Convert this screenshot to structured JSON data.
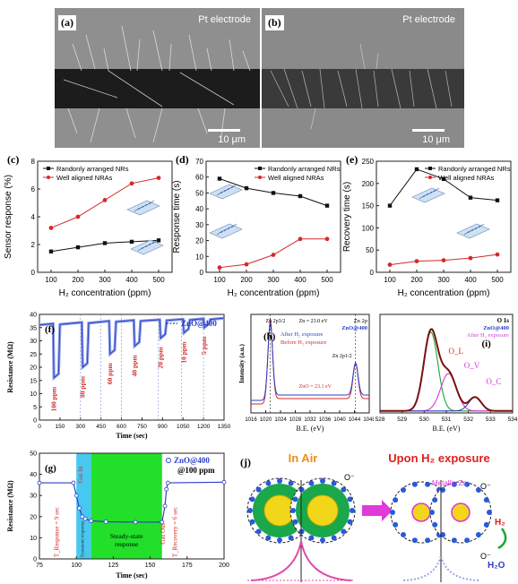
{
  "sem": {
    "a": {
      "tag": "(a)",
      "label": "Pt electrode",
      "scale": "10 μm"
    },
    "b": {
      "tag": "(b)",
      "label": "Pt electrode",
      "scale": "10 μm"
    }
  },
  "chart_data": [
    {
      "id": "c",
      "type": "line",
      "tag": "(c)",
      "xlabel": "H₂ concentration (ppm)",
      "ylabel": "Sensor response (%)",
      "x": [
        100,
        200,
        300,
        400,
        500
      ],
      "xlim": [
        50,
        550
      ],
      "ylim": [
        0,
        8
      ],
      "xticks": [
        100,
        200,
        300,
        400,
        500
      ],
      "yticks": [
        0,
        2,
        4,
        6,
        8
      ],
      "legend": "top-left",
      "series": [
        {
          "name": "Randonly arranged NRs",
          "color": "#111111",
          "marker": "square",
          "values": [
            1.5,
            1.8,
            2.1,
            2.2,
            2.3
          ]
        },
        {
          "name": "Well aligned NRAs",
          "color": "#d42a2a",
          "marker": "circle",
          "values": [
            3.2,
            4.0,
            5.2,
            6.4,
            6.8
          ]
        }
      ]
    },
    {
      "id": "d",
      "type": "line",
      "tag": "(d)",
      "xlabel": "H₂ concentration (ppm)",
      "ylabel": "Response time (s)",
      "x": [
        100,
        200,
        300,
        400,
        500
      ],
      "xlim": [
        50,
        550
      ],
      "ylim": [
        0,
        70
      ],
      "xticks": [
        100,
        200,
        300,
        400,
        500
      ],
      "yticks": [
        0,
        10,
        20,
        30,
        40,
        50,
        60,
        70
      ],
      "legend": "top-right",
      "series": [
        {
          "name": "Randonly arranged NRs",
          "color": "#111111",
          "marker": "square",
          "values": [
            59,
            53,
            50,
            48,
            42
          ]
        },
        {
          "name": "Well aligned NRAs",
          "color": "#d42a2a",
          "marker": "circle",
          "values": [
            3,
            5,
            11,
            21,
            21
          ]
        }
      ]
    },
    {
      "id": "e",
      "type": "line",
      "tag": "(e)",
      "xlabel": "H₂ concentration (ppm)",
      "ylabel": "Recovery time (s)",
      "x": [
        100,
        200,
        300,
        400,
        500
      ],
      "xlim": [
        50,
        550
      ],
      "ylim": [
        0,
        250
      ],
      "xticks": [
        100,
        200,
        300,
        400,
        500
      ],
      "yticks": [
        0,
        50,
        100,
        150,
        200,
        250
      ],
      "legend": "top-right",
      "series": [
        {
          "name": "Randonly arranged NRs",
          "color": "#111111",
          "marker": "square",
          "values": [
            150,
            232,
            210,
            168,
            162
          ]
        },
        {
          "name": "Well aligned NRAs",
          "color": "#d42a2a",
          "marker": "circle",
          "values": [
            17,
            25,
            27,
            32,
            40
          ]
        }
      ]
    },
    {
      "id": "f",
      "type": "line",
      "tag": "(f)",
      "xlabel": "Time (sec)",
      "ylabel": "Resistance (MΩ)",
      "xlim": [
        0,
        1350
      ],
      "ylim": [
        0,
        40
      ],
      "xticks": [
        0,
        150,
        300,
        450,
        600,
        750,
        900,
        1050,
        1200,
        1350
      ],
      "yticks": [
        0,
        5,
        10,
        15,
        20,
        25,
        30,
        35,
        40
      ],
      "legend": "top-right",
      "series_name": "ZnO@400",
      "pulses": [
        {
          "label": "100 ppm",
          "start": 100,
          "baseline": 36.5,
          "min": 16
        },
        {
          "label": "80 ppm",
          "start": 310,
          "baseline": 37,
          "min": 20
        },
        {
          "label": "60 ppm",
          "start": 510,
          "baseline": 37.5,
          "min": 25
        },
        {
          "label": "40 ppm",
          "start": 690,
          "baseline": 37.8,
          "min": 28
        },
        {
          "label": "20 ppm",
          "start": 880,
          "baseline": 38,
          "min": 31
        },
        {
          "label": "10 ppm",
          "start": 1050,
          "baseline": 38.2,
          "min": 33
        },
        {
          "label": "5 ppm",
          "start": 1200,
          "baseline": 38.4,
          "min": 35
        }
      ],
      "dividers": [
        300,
        450,
        600,
        870,
        1040,
        1200
      ]
    },
    {
      "id": "g",
      "type": "line",
      "tag": "(g)",
      "xlabel": "Time (sec)",
      "ylabel": "Resistance (MΩ)",
      "xlim": [
        75,
        200
      ],
      "ylim": [
        0,
        50
      ],
      "xticks": [
        75,
        100,
        125,
        150,
        175,
        200
      ],
      "yticks": [
        0,
        10,
        20,
        30,
        40,
        50
      ],
      "legend": "top-right",
      "series_name": "ZnO@400",
      "series_note": "@100 ppm",
      "regions": {
        "transient": [
          100,
          110
        ],
        "steady": [
          110,
          158
        ]
      },
      "annotations": {
        "gas_in": "Gas In",
        "gas_out": "Gas Out",
        "transient": "Transient response",
        "steady": "Steady-state response",
        "t_resp": "T_Response = 9 sec",
        "t_rec": "T_Recovery = 6 sec"
      },
      "points": [
        [
          75,
          36
        ],
        [
          98,
          36
        ],
        [
          100,
          30
        ],
        [
          102,
          24
        ],
        [
          104,
          20
        ],
        [
          106,
          19
        ],
        [
          110,
          18
        ],
        [
          120,
          17.6
        ],
        [
          140,
          17.4
        ],
        [
          158,
          17.4
        ],
        [
          160,
          25
        ],
        [
          161,
          33
        ],
        [
          162,
          36
        ],
        [
          200,
          36.3
        ]
      ]
    },
    {
      "id": "h",
      "type": "line",
      "tag": "(h)",
      "xlabel": "B.E. (eV)",
      "ylabel": "Intensity (a.u.)",
      "xlim": [
        1016,
        1048
      ],
      "xticks": [
        1016,
        1020,
        1024,
        1028,
        1032,
        1036,
        1040,
        1044,
        1048
      ],
      "legend": "top-left",
      "series": [
        {
          "name": "After H₂ exposure",
          "color": "#2c3fc8"
        },
        {
          "name": "Before H₂ exposure",
          "color": "#d42a2a"
        }
      ],
      "peaks": [
        1021.2,
        1044.3
      ],
      "annotations": {
        "zn2p32": "Zn 2p3/2",
        "zn2p12": "Zn 2p1/2",
        "zn2p": "Zn 2p",
        "sample": "ZnO@400",
        "delta_after": "Zn = 23.0 eV",
        "delta_before": "ZnO = 23.1 eV"
      }
    },
    {
      "id": "i",
      "type": "line",
      "tag": "(i)",
      "xlabel": "B.E. (eV)",
      "ylabel": "",
      "xlim": [
        528,
        534
      ],
      "xticks": [
        528,
        529,
        530,
        531,
        532,
        533,
        534
      ],
      "legend": "top-right",
      "annotations": {
        "title": "O 1s",
        "sample": "ZnO@400",
        "cond": "After H₂ exposure",
        "ol": "O_L",
        "ov": "O_V",
        "oc": "O_C"
      },
      "components": [
        {
          "name": "O_L",
          "color": "#18a832",
          "center": 530.3,
          "amp": 0.8,
          "width": 0.45
        },
        {
          "name": "O_V",
          "color": "#d63ad6",
          "center": 531.1,
          "amp": 0.38,
          "width": 0.5
        },
        {
          "name": "O_C",
          "color": "#2c3fc8",
          "center": 532.3,
          "amp": 0.14,
          "width": 0.4
        }
      ]
    }
  ],
  "diagram_j": {
    "tag": "(j)",
    "left_title": "In Air",
    "right_title": "Upon H₂ exposure",
    "ion": "O⁻",
    "metal": "Metallic Zn",
    "h2": "H₂",
    "h2o": "H₂O",
    "colors": {
      "title_left": "#f08c1a",
      "title_right": "#e0201c",
      "shell": "#1aa84a",
      "core": "#f2d61a",
      "oxygen": "#2a5ad8",
      "arrow": "#e03ad8"
    }
  }
}
